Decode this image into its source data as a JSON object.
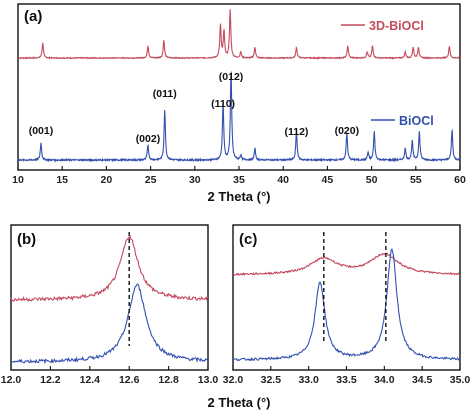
{
  "chart_data": [
    {
      "panel_label": "(a)",
      "type": "line",
      "xlabel": "2 Theta (°)",
      "xlim": [
        10,
        60
      ],
      "xticks": [
        "10",
        "15",
        "20",
        "25",
        "30",
        "35",
        "40",
        "45",
        "50",
        "55",
        "60"
      ],
      "colors": {
        "3D-BiOCl": "#c44a5e",
        "BiOCl": "#3350b0"
      },
      "series": [
        {
          "name": "3D-BiOCl",
          "offset": 1.0,
          "peaks": [
            [
              12.8,
              0.25
            ],
            [
              24.7,
              0.2
            ],
            [
              26.5,
              0.3
            ],
            [
              32.9,
              0.55
            ],
            [
              33.3,
              0.45
            ],
            [
              34.0,
              0.8
            ],
            [
              35.2,
              0.1
            ],
            [
              36.8,
              0.18
            ],
            [
              41.5,
              0.18
            ],
            [
              47.3,
              0.2
            ],
            [
              49.5,
              0.1
            ],
            [
              50.1,
              0.2
            ],
            [
              53.8,
              0.1
            ],
            [
              54.7,
              0.18
            ],
            [
              55.3,
              0.18
            ],
            [
              58.8,
              0.2
            ]
          ]
        },
        {
          "name": "BiOCl",
          "offset": 0.0,
          "peaks": [
            [
              12.6,
              0.18
            ],
            [
              24.7,
              0.16
            ],
            [
              26.6,
              0.52
            ],
            [
              33.2,
              0.6
            ],
            [
              34.1,
              0.95
            ],
            [
              35.2,
              0.05
            ],
            [
              36.8,
              0.12
            ],
            [
              41.5,
              0.3
            ],
            [
              47.2,
              0.28
            ],
            [
              49.6,
              0.08
            ],
            [
              50.3,
              0.3
            ],
            [
              53.8,
              0.12
            ],
            [
              54.6,
              0.2
            ],
            [
              55.4,
              0.3
            ],
            [
              59.1,
              0.32
            ]
          ]
        }
      ],
      "annotations": [
        {
          "text": "(001)",
          "x": 12.6
        },
        {
          "text": "(002)",
          "x": 24.7
        },
        {
          "text": "(011)",
          "x": 26.6
        },
        {
          "text": "(110)",
          "x": 33.2
        },
        {
          "text": "(012)",
          "x": 34.1
        },
        {
          "text": "(112)",
          "x": 41.5
        },
        {
          "text": "(020)",
          "x": 47.2
        }
      ]
    },
    {
      "panel_label": "(b)",
      "type": "line",
      "xlabel": "2 Theta (°)",
      "xlim": [
        12.0,
        13.0
      ],
      "xticks": [
        "12.0",
        "12.2",
        "12.4",
        "12.6",
        "12.8",
        "13.0"
      ],
      "dashed_line_x": 12.6,
      "series": [
        {
          "name": "3D-BiOCl",
          "center": 12.6,
          "height": 0.55,
          "baseline": 1.0
        },
        {
          "name": "BiOCl",
          "center": 12.64,
          "height": 0.7,
          "baseline": 0.0
        }
      ]
    },
    {
      "panel_label": "(c)",
      "type": "line",
      "xlabel": "2 Theta (°)",
      "xlim": [
        32.0,
        35.0
      ],
      "xticks": [
        "32.0",
        "32.5",
        "33.0",
        "33.5",
        "34.0",
        "34.5",
        "35.0"
      ],
      "dashed_line_x": [
        33.2,
        34.02
      ],
      "series": [
        {
          "name": "3D-BiOCl",
          "peaks": [
            [
              33.2,
              0.35
            ],
            [
              34.0,
              0.45
            ]
          ],
          "baseline": 1.0
        },
        {
          "name": "BiOCl",
          "peaks": [
            [
              33.15,
              0.7
            ],
            [
              34.1,
              1.0
            ]
          ],
          "baseline": 0.0
        }
      ]
    }
  ],
  "legend": {
    "series_a": "3D-BiOCl",
    "series_b": "BiOCl"
  }
}
